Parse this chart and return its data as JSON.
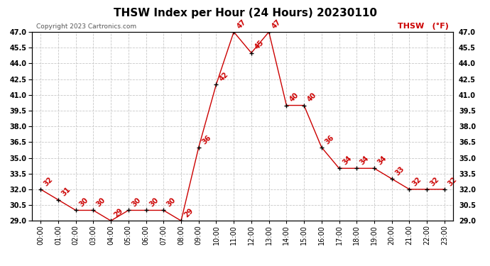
{
  "title": "THSW Index per Hour (24 Hours) 20230110",
  "copyright": "Copyright 2023 Cartronics.com",
  "legend_label": "THSW  (°F)",
  "hours": [
    "00:00",
    "01:00",
    "02:00",
    "03:00",
    "04:00",
    "05:00",
    "06:00",
    "07:00",
    "08:00",
    "09:00",
    "10:00",
    "11:00",
    "12:00",
    "13:00",
    "14:00",
    "15:00",
    "16:00",
    "17:00",
    "18:00",
    "19:00",
    "20:00",
    "21:00",
    "22:00",
    "23:00"
  ],
  "values": [
    32,
    31,
    30,
    30,
    29,
    30,
    30,
    30,
    29,
    36,
    42,
    47,
    45,
    47,
    40,
    40,
    36,
    34,
    34,
    34,
    33,
    32,
    32,
    32
  ],
  "line_color": "#cc0000",
  "marker_color": "#000000",
  "grid_color": "#c8c8c8",
  "bg_color": "#ffffff",
  "ylim_min": 29.0,
  "ylim_max": 47.0,
  "ytick_step": 1.5,
  "title_fontsize": 11,
  "label_fontsize": 7,
  "annotation_fontsize": 7,
  "copyright_fontsize": 6.5,
  "legend_fontsize": 8
}
